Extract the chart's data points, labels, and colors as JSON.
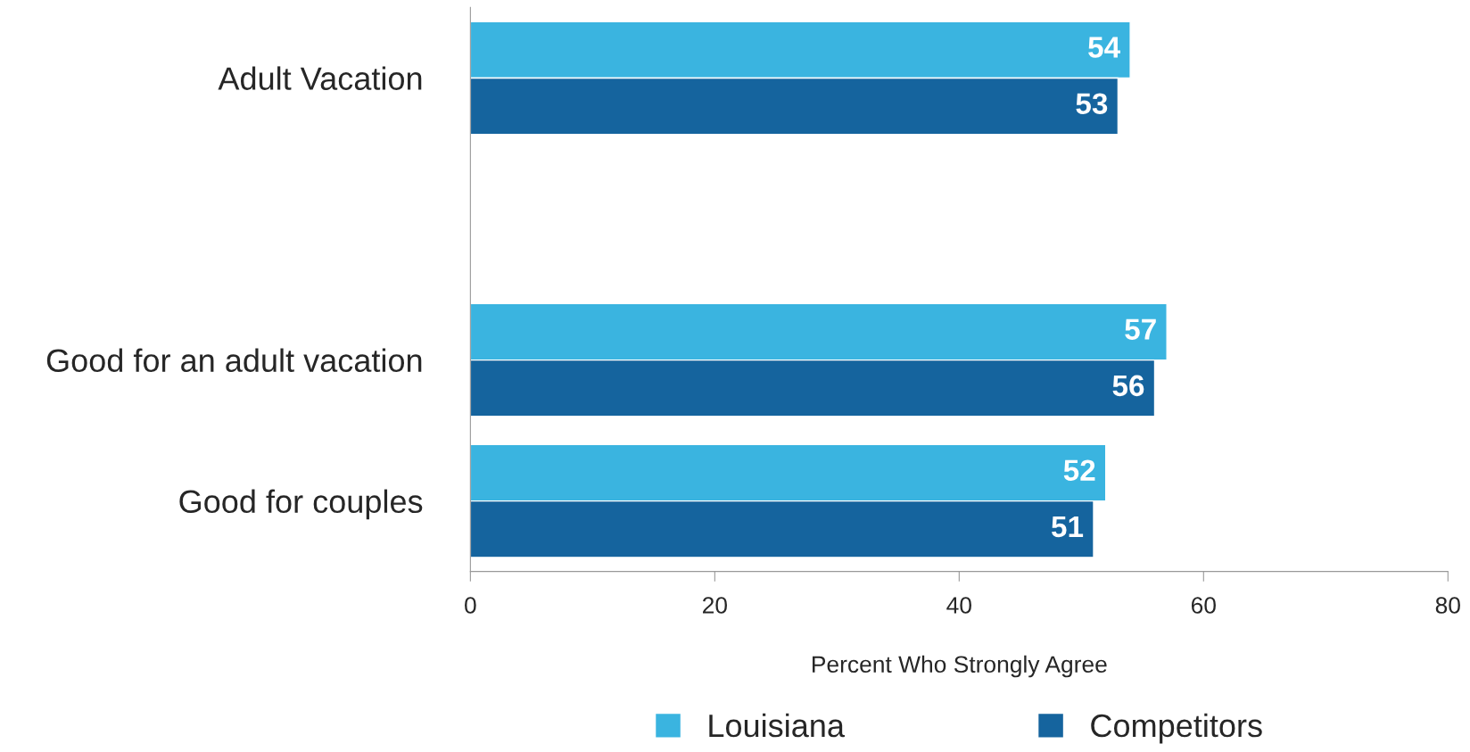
{
  "chart_data": {
    "type": "bar",
    "orientation": "horizontal",
    "categories": [
      "Adult Vacation",
      null,
      "Good for an adult vacation",
      "Good for couples"
    ],
    "series": [
      {
        "name": "Louisiana",
        "color": "#3ab4e0",
        "values": [
          54,
          null,
          57,
          52
        ]
      },
      {
        "name": "Competitors",
        "color": "#15649e",
        "values": [
          53,
          null,
          56,
          51
        ]
      }
    ],
    "xlabel": "Percent Who Strongly Agree",
    "xlim": [
      0,
      80
    ],
    "xticks": [
      0,
      20,
      40,
      60,
      80
    ],
    "data_labels": true,
    "legend": "bottom",
    "grid": false
  }
}
